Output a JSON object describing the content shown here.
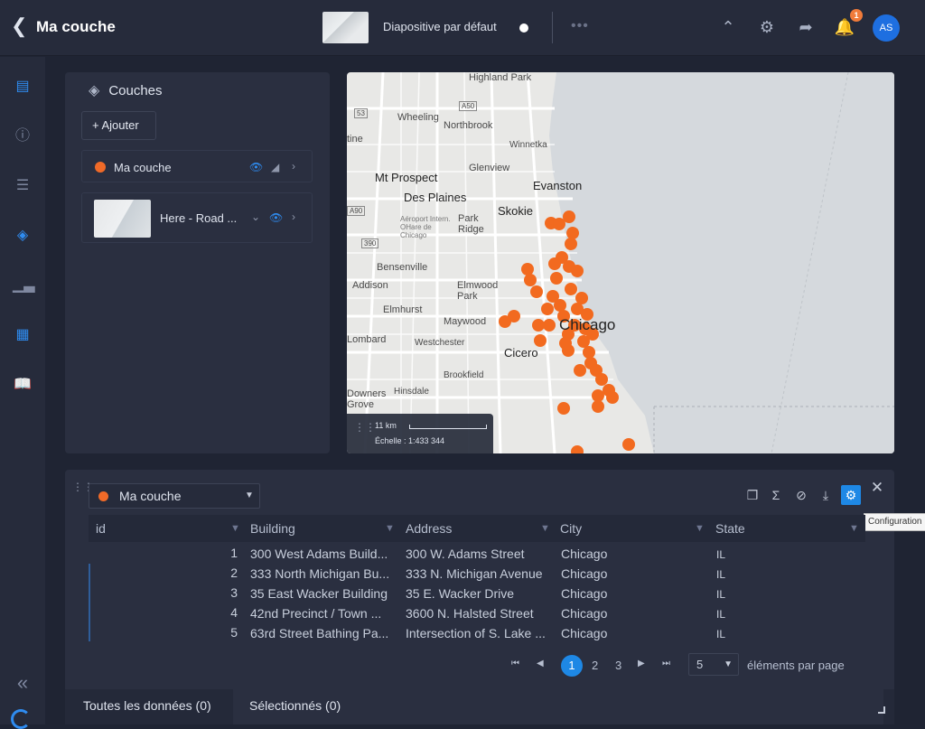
{
  "header": {
    "title": "Ma couche",
    "slide_label": "Diapositive par défaut",
    "more": "•••",
    "notif_count": "1",
    "avatar": "AS"
  },
  "sidebar": {
    "items": [
      "map",
      "info",
      "list",
      "layers",
      "chart",
      "table",
      "book"
    ],
    "collapse": "«"
  },
  "layers_panel": {
    "title": "Couches",
    "add_button": "+ Ajouter",
    "layers": [
      {
        "name": "Ma couche",
        "color": "#f06a28"
      },
      {
        "name": "Here - Road ..."
      }
    ]
  },
  "map": {
    "labels": [
      "Highland Park",
      "Wheeling",
      "Northbrook",
      "Winnetka",
      "Glenview",
      "Mt Prospect",
      "Evanston",
      "Des Plaines",
      "Skokie",
      "Park Ridge",
      "Aéroport Intern. OHare de Chicago",
      "Bensenville",
      "Addison",
      "Elmwood Park",
      "Elmhurst",
      "Maywood",
      "Chicago",
      "Lombard",
      "Westchester",
      "Cicero",
      "Brookfield",
      "Hinsdale",
      "Downers Grove",
      "tine"
    ],
    "shields": [
      "53",
      "A50",
      "A90",
      "390"
    ],
    "scale_value": "11 km",
    "scale_text": "Échelle : 1:433 344",
    "point_color": "#f26a1f"
  },
  "table_panel": {
    "layer_select": "Ma couche",
    "tooltip": "Configuration",
    "columns": [
      "id",
      "Building",
      "Address",
      "City",
      "State"
    ],
    "rows": [
      {
        "id": "1",
        "building": "300 West Adams Build...",
        "address": "300 W. Adams Street",
        "city": "Chicago",
        "state": "IL"
      },
      {
        "id": "2",
        "building": "333 North Michigan Bu...",
        "address": "333 N. Michigan Avenue",
        "city": "Chicago",
        "state": "IL"
      },
      {
        "id": "3",
        "building": "35 East Wacker Building",
        "address": "35 E. Wacker Drive",
        "city": "Chicago",
        "state": "IL"
      },
      {
        "id": "4",
        "building": "42nd Precinct / Town ...",
        "address": "3600 N. Halsted Street",
        "city": "Chicago",
        "state": "IL"
      },
      {
        "id": "5",
        "building": "63rd Street Bathing Pa...",
        "address": "Intersection of S. Lake ...",
        "city": "Chicago",
        "state": "IL"
      }
    ],
    "pages": [
      "1",
      "2",
      "3"
    ],
    "per_page_value": "5",
    "per_page_label": "éléments par page",
    "tab_all": "Toutes les données (0)",
    "tab_selected": "Sélectionnés (0)"
  }
}
